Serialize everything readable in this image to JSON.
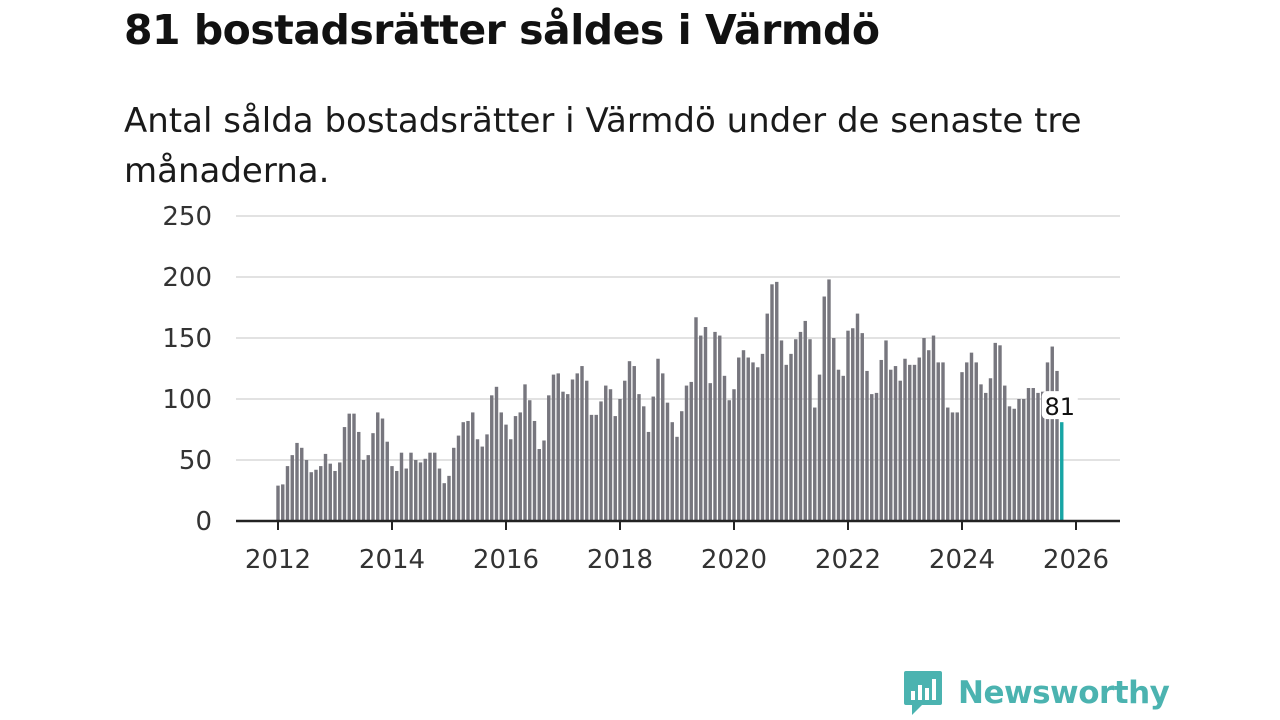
{
  "header": {
    "title": "81 bostadsrätter såldes i Värmdö",
    "subtitle": "Antal sålda bostadsrätter i Värmdö under de senaste tre månaderna."
  },
  "brand": {
    "name": "Newsworthy",
    "logo_icon": "bar-chart-speech-bubble-icon",
    "color": "#4bb3b0"
  },
  "colors": {
    "bar": "#77767e",
    "highlight": "#17a5a5",
    "grid": "#d9d9d9",
    "axis": "#222222"
  },
  "chart_data": {
    "type": "bar",
    "title": "81 bostadsrätter såldes i Värmdö",
    "subtitle": "Antal sålda bostadsrätter i Värmdö under de senaste tre månaderna.",
    "xlabel": "",
    "ylabel": "",
    "ylim": [
      0,
      250
    ],
    "yticks": [
      0,
      50,
      100,
      150,
      200,
      250
    ],
    "xticks": [
      2012,
      2014,
      2016,
      2018,
      2020,
      2022,
      2024,
      2026
    ],
    "x_start": 2012.0,
    "x_step": 0.08333,
    "grid": true,
    "values": [
      29,
      30,
      45,
      54,
      64,
      60,
      50,
      40,
      42,
      45,
      55,
      47,
      41,
      48,
      77,
      88,
      88,
      73,
      50,
      54,
      72,
      89,
      84,
      65,
      45,
      41,
      56,
      43,
      56,
      50,
      48,
      51,
      56,
      56,
      43,
      31,
      37,
      60,
      70,
      81,
      82,
      89,
      67,
      61,
      71,
      103,
      110,
      89,
      79,
      67,
      86,
      89,
      112,
      99,
      82,
      59,
      66,
      103,
      120,
      121,
      106,
      104,
      116,
      121,
      127,
      115,
      87,
      87,
      98,
      111,
      108,
      86,
      100,
      115,
      131,
      127,
      104,
      94,
      73,
      102,
      133,
      121,
      97,
      81,
      69,
      90,
      111,
      114,
      167,
      152,
      159,
      113,
      155,
      152,
      119,
      99,
      108,
      134,
      140,
      134,
      130,
      126,
      137,
      170,
      194,
      196,
      148,
      128,
      137,
      149,
      155,
      164,
      149,
      93,
      120,
      184,
      198,
      150,
      124,
      119,
      156,
      158,
      170,
      154,
      123,
      104,
      105,
      132,
      148,
      124,
      127,
      115,
      133,
      128,
      128,
      134,
      150,
      140,
      152,
      130,
      130,
      93,
      89,
      89,
      122,
      130,
      138,
      130,
      112,
      105,
      117,
      146,
      144,
      111,
      94,
      92,
      100,
      100,
      109,
      109,
      105,
      106,
      130,
      143,
      123,
      81
    ],
    "highlight": {
      "label": "81",
      "value": 81
    }
  }
}
